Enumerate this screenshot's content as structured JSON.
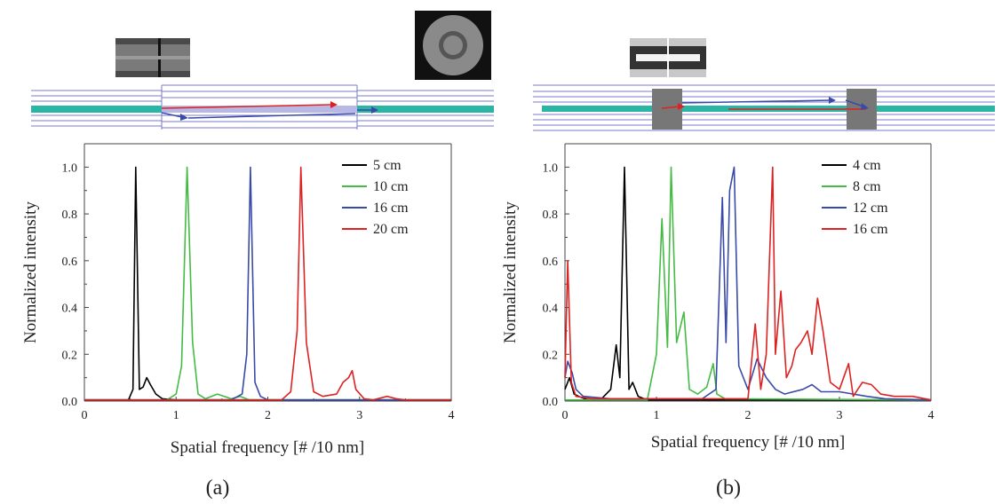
{
  "chart_data": [
    {
      "type": "line",
      "caption": "(a)",
      "xlabel": "Spatial frequency [# /10 nm]",
      "ylabel": "Normalized intensity",
      "xlim": [
        0,
        4
      ],
      "ylim": [
        0,
        1.1
      ],
      "xticks": [
        "0",
        "1",
        "2",
        "3",
        "4"
      ],
      "yticks": [
        "0.0",
        "0.2",
        "0.4",
        "0.6",
        "0.8",
        "1.0"
      ],
      "legend_position": "top-right",
      "series": [
        {
          "name": "5 cm",
          "color": "#000000",
          "points": [
            [
              0,
              0.005
            ],
            [
              0.3,
              0.005
            ],
            [
              0.48,
              0.005
            ],
            [
              0.53,
              0.05
            ],
            [
              0.56,
              1.0
            ],
            [
              0.6,
              0.05
            ],
            [
              0.64,
              0.06
            ],
            [
              0.68,
              0.1
            ],
            [
              0.72,
              0.07
            ],
            [
              0.78,
              0.03
            ],
            [
              0.85,
              0.01
            ],
            [
              1.0,
              0.005
            ],
            [
              4,
              0.005
            ]
          ]
        },
        {
          "name": "10 cm",
          "color": "#44bb44",
          "points": [
            [
              0,
              0.005
            ],
            [
              0.9,
              0.005
            ],
            [
              1.0,
              0.03
            ],
            [
              1.06,
              0.15
            ],
            [
              1.12,
              1.0
            ],
            [
              1.18,
              0.25
            ],
            [
              1.24,
              0.03
            ],
            [
              1.32,
              0.01
            ],
            [
              1.45,
              0.03
            ],
            [
              1.6,
              0.01
            ],
            [
              1.7,
              0.02
            ],
            [
              1.8,
              0.005
            ],
            [
              4,
              0.005
            ]
          ]
        },
        {
          "name": "16 cm",
          "color": "#3a4aa8",
          "points": [
            [
              0,
              0.005
            ],
            [
              1.6,
              0.005
            ],
            [
              1.72,
              0.03
            ],
            [
              1.77,
              0.2
            ],
            [
              1.81,
              1.0
            ],
            [
              1.86,
              0.08
            ],
            [
              1.92,
              0.02
            ],
            [
              2.0,
              0.005
            ],
            [
              4,
              0.005
            ]
          ]
        },
        {
          "name": "20 cm",
          "color": "#dd2222",
          "points": [
            [
              0,
              0.005
            ],
            [
              2.15,
              0.005
            ],
            [
              2.25,
              0.04
            ],
            [
              2.32,
              0.3
            ],
            [
              2.36,
              1.0
            ],
            [
              2.42,
              0.25
            ],
            [
              2.5,
              0.04
            ],
            [
              2.6,
              0.02
            ],
            [
              2.75,
              0.03
            ],
            [
              2.82,
              0.08
            ],
            [
              2.88,
              0.1
            ],
            [
              2.92,
              0.13
            ],
            [
              2.96,
              0.05
            ],
            [
              3.05,
              0.01
            ],
            [
              3.15,
              0.005
            ],
            [
              3.3,
              0.02
            ],
            [
              3.4,
              0.01
            ],
            [
              3.5,
              0.005
            ],
            [
              4,
              0.005
            ]
          ]
        }
      ]
    },
    {
      "type": "line",
      "caption": "(b)",
      "xlabel": "Spatial frequency [# /10 nm]",
      "ylabel": "Normalized intensity",
      "xlim": [
        0,
        4
      ],
      "ylim": [
        0,
        1.1
      ],
      "xticks": [
        "0",
        "1",
        "2",
        "3",
        "4"
      ],
      "yticks": [
        "0.0",
        "0.2",
        "0.4",
        "0.6",
        "0.8",
        "1.0"
      ],
      "legend_position": "top-right",
      "series": [
        {
          "name": "4 cm",
          "color": "#000000",
          "points": [
            [
              0,
              0.05
            ],
            [
              0.05,
              0.1
            ],
            [
              0.1,
              0.03
            ],
            [
              0.15,
              0.02
            ],
            [
              0.25,
              0.005
            ],
            [
              0.4,
              0.01
            ],
            [
              0.5,
              0.05
            ],
            [
              0.56,
              0.24
            ],
            [
              0.6,
              0.1
            ],
            [
              0.65,
              1.0
            ],
            [
              0.7,
              0.05
            ],
            [
              0.74,
              0.08
            ],
            [
              0.8,
              0.02
            ],
            [
              0.9,
              0.005
            ],
            [
              4,
              0.005
            ]
          ]
        },
        {
          "name": "8 cm",
          "color": "#44bb44",
          "points": [
            [
              0,
              0.005
            ],
            [
              0.9,
              0.005
            ],
            [
              1.0,
              0.2
            ],
            [
              1.06,
              0.78
            ],
            [
              1.12,
              0.23
            ],
            [
              1.16,
              1.0
            ],
            [
              1.22,
              0.25
            ],
            [
              1.3,
              0.38
            ],
            [
              1.36,
              0.05
            ],
            [
              1.45,
              0.03
            ],
            [
              1.55,
              0.06
            ],
            [
              1.62,
              0.16
            ],
            [
              1.66,
              0.03
            ],
            [
              1.75,
              0.01
            ],
            [
              4,
              0.005
            ]
          ]
        },
        {
          "name": "12 cm",
          "color": "#3a4aa8",
          "points": [
            [
              0,
              0.1
            ],
            [
              0.03,
              0.17
            ],
            [
              0.08,
              0.12
            ],
            [
              0.12,
              0.05
            ],
            [
              0.2,
              0.02
            ],
            [
              0.5,
              0.01
            ],
            [
              1.5,
              0.01
            ],
            [
              1.65,
              0.05
            ],
            [
              1.72,
              0.87
            ],
            [
              1.76,
              0.25
            ],
            [
              1.8,
              0.9
            ],
            [
              1.85,
              1.0
            ],
            [
              1.9,
              0.15
            ],
            [
              2.0,
              0.05
            ],
            [
              2.1,
              0.18
            ],
            [
              2.2,
              0.1
            ],
            [
              2.3,
              0.05
            ],
            [
              2.4,
              0.03
            ],
            [
              2.6,
              0.05
            ],
            [
              2.7,
              0.07
            ],
            [
              2.8,
              0.04
            ],
            [
              3.0,
              0.04
            ],
            [
              3.3,
              0.02
            ],
            [
              3.5,
              0.01
            ],
            [
              4,
              0.005
            ]
          ]
        },
        {
          "name": "16 cm",
          "color": "#dd2222",
          "points": [
            [
              0,
              0.1
            ],
            [
              0.03,
              0.6
            ],
            [
              0.07,
              0.08
            ],
            [
              0.12,
              0.02
            ],
            [
              0.3,
              0.01
            ],
            [
              2.0,
              0.01
            ],
            [
              2.08,
              0.33
            ],
            [
              2.14,
              0.05
            ],
            [
              2.2,
              0.2
            ],
            [
              2.27,
              1.0
            ],
            [
              2.3,
              0.2
            ],
            [
              2.36,
              0.47
            ],
            [
              2.42,
              0.1
            ],
            [
              2.48,
              0.15
            ],
            [
              2.52,
              0.22
            ],
            [
              2.58,
              0.25
            ],
            [
              2.65,
              0.3
            ],
            [
              2.7,
              0.2
            ],
            [
              2.76,
              0.44
            ],
            [
              2.82,
              0.3
            ],
            [
              2.9,
              0.08
            ],
            [
              3.0,
              0.05
            ],
            [
              3.1,
              0.16
            ],
            [
              3.15,
              0.02
            ],
            [
              3.25,
              0.08
            ],
            [
              3.35,
              0.07
            ],
            [
              3.45,
              0.03
            ],
            [
              3.6,
              0.02
            ],
            [
              3.8,
              0.02
            ],
            [
              4,
              0.005
            ]
          ]
        }
      ]
    }
  ]
}
